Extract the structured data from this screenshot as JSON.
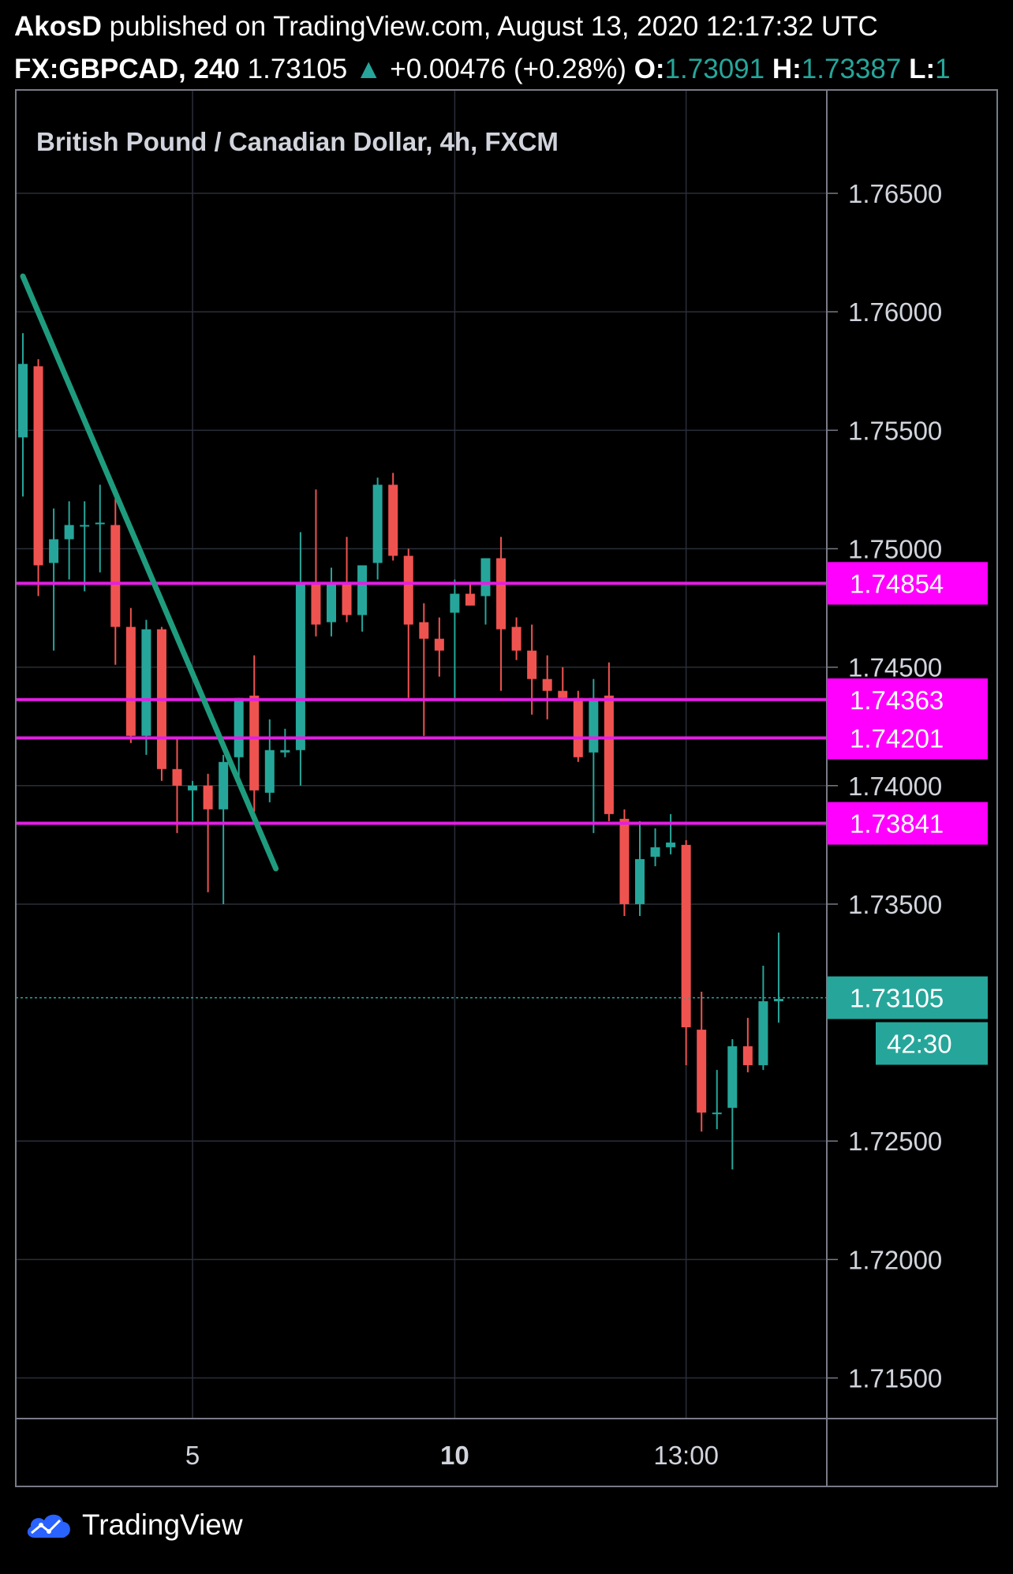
{
  "header": {
    "author": "AkosD",
    "published_text": "published on TradingView.com, August 13, 2020 12:17:32 UTC",
    "symbol": "FX:GBPCAD, 240",
    "last_price": "1.73105",
    "change_arrow": "▲",
    "change": "+0.00476 (+0.28%)",
    "open_label": "O:",
    "open": "1.73091",
    "high_label": "H:",
    "high": "1.73387",
    "low_label": "L:",
    "low": "1"
  },
  "footer": {
    "brand": "TradingView"
  },
  "colors": {
    "background": "#000000",
    "grid": "#2a2e39",
    "up": "#26a69a",
    "down": "#ef5350",
    "level": "#e41ee4",
    "level_label": "#ff00ff",
    "trendline": "#1f9c7e",
    "text": "#ffffff"
  },
  "chart_data": {
    "type": "candlestick",
    "title": "British Pound / Canadian Dollar, 4h, FXCM",
    "ylim": [
      1.7115,
      1.768
    ],
    "y_ticks": [
      "1.76500",
      "1.76000",
      "1.75500",
      "1.75000",
      "1.74500",
      "1.74000",
      "1.73500",
      "1.72500",
      "1.72000",
      "1.71500"
    ],
    "x_ticks": [
      {
        "label": "5",
        "bold": false,
        "bar": 11
      },
      {
        "label": "10",
        "bold": true,
        "bar": 28
      },
      {
        "label": "13:00",
        "bold": false,
        "bar": 43
      }
    ],
    "ohlc": [
      [
        1.7547,
        1.7591,
        1.7522,
        1.7578
      ],
      [
        1.7577,
        1.758,
        1.748,
        1.7493
      ],
      [
        1.7494,
        1.7517,
        1.7457,
        1.7504
      ],
      [
        1.7504,
        1.752,
        1.7487,
        1.751
      ],
      [
        1.751,
        1.752,
        1.7482,
        1.751
      ],
      [
        1.7511,
        1.7527,
        1.749,
        1.7511
      ],
      [
        1.751,
        1.7521,
        1.7451,
        1.7467
      ],
      [
        1.7467,
        1.7475,
        1.7418,
        1.7421
      ],
      [
        1.7421,
        1.747,
        1.7413,
        1.7466
      ],
      [
        1.7466,
        1.7467,
        1.7402,
        1.7407
      ],
      [
        1.7407,
        1.742,
        1.738,
        1.74
      ],
      [
        1.7398,
        1.7402,
        1.7385,
        1.74
      ],
      [
        1.74,
        1.7405,
        1.7355,
        1.739
      ],
      [
        1.739,
        1.7413,
        1.735,
        1.741
      ],
      [
        1.7412,
        1.7437,
        1.74,
        1.7437
      ],
      [
        1.7438,
        1.7455,
        1.7389,
        1.7398
      ],
      [
        1.7397,
        1.7428,
        1.7393,
        1.7415
      ],
      [
        1.7414,
        1.7424,
        1.7412,
        1.7415
      ],
      [
        1.7415,
        1.7507,
        1.74,
        1.7485
      ],
      [
        1.7485,
        1.7525,
        1.7463,
        1.7468
      ],
      [
        1.7469,
        1.7492,
        1.7463,
        1.7485
      ],
      [
        1.7485,
        1.7505,
        1.7469,
        1.7472
      ],
      [
        1.7472,
        1.7492,
        1.7465,
        1.7493
      ],
      [
        1.7494,
        1.753,
        1.7487,
        1.7527
      ],
      [
        1.7527,
        1.7532,
        1.7495,
        1.7497
      ],
      [
        1.7497,
        1.75,
        1.7437,
        1.7468
      ],
      [
        1.7469,
        1.7477,
        1.7421,
        1.7462
      ],
      [
        1.7462,
        1.7471,
        1.7446,
        1.7457
      ],
      [
        1.7473,
        1.7487,
        1.7437,
        1.7481
      ],
      [
        1.7481,
        1.7486,
        1.7476,
        1.7476
      ],
      [
        1.748,
        1.7496,
        1.7468,
        1.7496
      ],
      [
        1.7496,
        1.7505,
        1.744,
        1.7466
      ],
      [
        1.7467,
        1.7471,
        1.7453,
        1.7457
      ],
      [
        1.7457,
        1.7468,
        1.743,
        1.7445
      ],
      [
        1.7445,
        1.7455,
        1.7428,
        1.744
      ],
      [
        1.744,
        1.745,
        1.7437,
        1.7437
      ],
      [
        1.7437,
        1.744,
        1.741,
        1.7412
      ],
      [
        1.7414,
        1.7445,
        1.738,
        1.7437
      ],
      [
        1.7438,
        1.7452,
        1.7385,
        1.7388
      ],
      [
        1.7386,
        1.739,
        1.7345,
        1.735
      ],
      [
        1.735,
        1.7385,
        1.7345,
        1.7369
      ],
      [
        1.737,
        1.7382,
        1.7366,
        1.7374
      ],
      [
        1.7374,
        1.7388,
        1.7371,
        1.7376
      ],
      [
        1.7375,
        1.7377,
        1.7282,
        1.7298
      ],
      [
        1.7297,
        1.7313,
        1.7254,
        1.7262
      ],
      [
        1.7262,
        1.728,
        1.7255,
        1.7262
      ],
      [
        1.7264,
        1.7293,
        1.7238,
        1.729
      ],
      [
        1.729,
        1.7302,
        1.7279,
        1.7282
      ],
      [
        1.7282,
        1.7324,
        1.728,
        1.7309
      ],
      [
        1.7309,
        1.7338,
        1.73,
        1.731
      ]
    ],
    "levels": [
      {
        "label": "1.74854",
        "value": 1.74854
      },
      {
        "label": "1.74363",
        "value": 1.74363
      },
      {
        "label": "1.74201",
        "value": 1.74201
      },
      {
        "label": "1.73841",
        "value": 1.73841
      }
    ],
    "trendline": {
      "from": [
        0,
        1.7615
      ],
      "to": [
        16.4,
        1.7365
      ]
    },
    "last_price": {
      "label": "1.73105",
      "value": 1.73105,
      "countdown": "42:30"
    }
  }
}
